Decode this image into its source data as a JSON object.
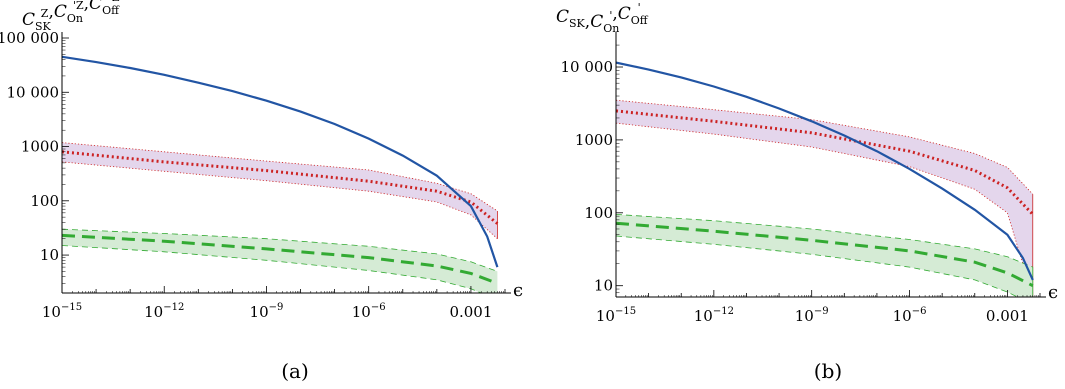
{
  "chart_data": [
    {
      "type": "line",
      "panel_label": "(a)",
      "ylabel_parts": [
        "C",
        "SK",
        "Z",
        ",",
        "C",
        "On",
        "'Z",
        ",",
        "C",
        "Off",
        "'Z"
      ],
      "xlabel": "ϵ",
      "x_scale": "log",
      "y_scale": "log",
      "xlim": [
        1e-15,
        0.01
      ],
      "ylim": [
        2,
        100000
      ],
      "x_ticks": [
        {
          "base": "10",
          "exp": "−15",
          "value": 1e-15
        },
        {
          "base": "10",
          "exp": "−12",
          "value": 1e-12
        },
        {
          "base": "10",
          "exp": "−9",
          "value": 1e-09
        },
        {
          "base": "10",
          "exp": "−6",
          "value": 1e-06
        },
        {
          "base": "",
          "exp": "",
          "text": "0.001",
          "value": 0.001
        }
      ],
      "y_ticks": [
        {
          "text": "10",
          "value": 10
        },
        {
          "text": "100",
          "value": 100
        },
        {
          "text": "1000",
          "value": 1000
        },
        {
          "text": "10 000",
          "value": 10000
        },
        {
          "text": "100 000",
          "value": 100000
        }
      ],
      "series": [
        {
          "style": "solid",
          "color": "#2255a4",
          "x": [
            1e-15,
            1e-14,
            1e-13,
            1e-12,
            1e-11,
            1e-10,
            1e-09,
            1e-08,
            1e-07,
            1e-06,
            1e-05,
            0.0001,
            0.001,
            0.003,
            0.006
          ],
          "y": [
            45000,
            36000,
            28000,
            21000,
            15000,
            10500,
            7000,
            4400,
            2600,
            1400,
            680,
            290,
            80,
            22,
            6
          ]
        },
        {
          "style": "dotted",
          "color": "#cc2222",
          "x": [
            1e-15,
            1e-12,
            1e-09,
            1e-06,
            0.0001,
            0.001,
            0.006
          ],
          "y": [
            800,
            520,
            360,
            230,
            150,
            95,
            38
          ],
          "band_low": [
            520,
            350,
            235,
            150,
            95,
            55,
            20
          ],
          "band_high": [
            1180,
            800,
            540,
            370,
            210,
            135,
            65
          ]
        },
        {
          "style": "dashed",
          "color": "#33aa33",
          "x": [
            1e-15,
            1e-12,
            1e-09,
            1e-06,
            0.0001,
            0.001,
            0.006
          ],
          "y": [
            23,
            18,
            13,
            9,
            6.3,
            4.6,
            3
          ],
          "band_low": [
            15,
            11.5,
            8,
            5.2,
            3.5,
            2.4,
            1.5
          ],
          "band_high": [
            30,
            25,
            20,
            14.5,
            10.5,
            7.5,
            5
          ]
        }
      ]
    },
    {
      "type": "line",
      "panel_label": "(b)",
      "ylabel_parts": [
        "C",
        "SK",
        "",
        ",",
        "C",
        "On",
        "'",
        ",",
        "C",
        "Off",
        "'"
      ],
      "xlabel": "ϵ",
      "x_scale": "log",
      "y_scale": "log",
      "xlim": [
        1e-15,
        0.01
      ],
      "ylim": [
        7,
        25000
      ],
      "x_ticks": [
        {
          "base": "10",
          "exp": "−15",
          "value": 1e-15
        },
        {
          "base": "10",
          "exp": "−12",
          "value": 1e-12
        },
        {
          "base": "10",
          "exp": "−9",
          "value": 1e-09
        },
        {
          "base": "10",
          "exp": "−6",
          "value": 1e-06
        },
        {
          "base": "",
          "exp": "",
          "text": "0.001",
          "value": 0.001
        }
      ],
      "y_ticks": [
        {
          "text": "10",
          "value": 10
        },
        {
          "text": "100",
          "value": 100
        },
        {
          "text": "1000",
          "value": 1000
        },
        {
          "text": "10 000",
          "value": 10000
        }
      ],
      "series": [
        {
          "style": "solid",
          "color": "#2255a4",
          "x": [
            1e-15,
            1e-14,
            1e-13,
            1e-12,
            1e-11,
            1e-10,
            1e-09,
            1e-08,
            1e-07,
            1e-06,
            1e-05,
            0.0001,
            0.001,
            0.003,
            0.006
          ],
          "y": [
            11500,
            9200,
            7200,
            5400,
            3900,
            2700,
            1800,
            1150,
            700,
            400,
            215,
            110,
            50,
            24,
            12
          ]
        },
        {
          "style": "dotted",
          "color": "#cc2222",
          "x": [
            1e-15,
            1e-12,
            1e-09,
            1e-06,
            0.0001,
            0.001,
            0.006
          ],
          "y": [
            2500,
            1800,
            1250,
            700,
            380,
            220,
            95
          ],
          "band_low": [
            1700,
            1200,
            800,
            430,
            210,
            100,
            7
          ],
          "band_high": [
            3500,
            2600,
            1900,
            1100,
            650,
            420,
            180
          ]
        },
        {
          "style": "dashed",
          "color": "#33aa33",
          "x": [
            1e-15,
            1e-12,
            1e-09,
            1e-06,
            0.0001,
            0.001,
            0.006
          ],
          "y": [
            72,
            56,
            42,
            30,
            21,
            15,
            10
          ],
          "band_low": [
            48,
            37,
            27,
            18,
            12,
            8.2,
            5.5
          ],
          "band_high": [
            95,
            78,
            60,
            43,
            32,
            25,
            18
          ]
        }
      ]
    }
  ]
}
